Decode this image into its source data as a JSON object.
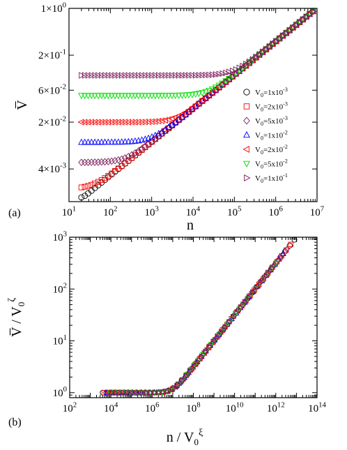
{
  "chart_data": [
    {
      "type": "scatter",
      "panel_label": "(a)",
      "xlabel": "n",
      "ylabel": "V̅",
      "xscale": "log",
      "yscale": "log",
      "xlim": [
        10,
        10000000
      ],
      "ylim": [
        0.0013,
        1.0
      ],
      "x_ticks": [
        {
          "value": 10,
          "base": "10",
          "exp": "1"
        },
        {
          "value": 100,
          "base": "10",
          "exp": "2"
        },
        {
          "value": 1000,
          "base": "10",
          "exp": "3"
        },
        {
          "value": 10000,
          "base": "10",
          "exp": "4"
        },
        {
          "value": 100000,
          "base": "10",
          "exp": "5"
        },
        {
          "value": 1000000,
          "base": "10",
          "exp": "6"
        },
        {
          "value": 10000000,
          "base": "10",
          "exp": "7"
        }
      ],
      "y_ticks": [
        {
          "value": 0.004,
          "label": "4×10",
          "exp": "-3"
        },
        {
          "value": 0.02,
          "label": "2×10",
          "exp": "-2"
        },
        {
          "value": 0.06,
          "label": "6×10",
          "exp": "-2"
        },
        {
          "value": 0.2,
          "label": "2×10",
          "exp": "-1"
        },
        {
          "value": 1.0,
          "label": "1×10",
          "exp": "0"
        }
      ],
      "grid": false,
      "legend_position": "bottom-right",
      "series": [
        {
          "name": "V0=1x10-3",
          "legend_label": "V",
          "legend_sub": "0",
          "legend_val": "=1x10",
          "legend_exp": "-3",
          "marker": "circle",
          "color": "#000000",
          "plateau": 0.001,
          "n_start": 20
        },
        {
          "name": "V0=2x10-3",
          "legend_label": "V",
          "legend_sub": "0",
          "legend_val": "=2x10",
          "legend_exp": "-3",
          "marker": "square",
          "color": "#ff0000",
          "plateau": 0.002,
          "n_start": 20
        },
        {
          "name": "V0=5x10-3",
          "legend_label": "V",
          "legend_sub": "0",
          "legend_val": "=5x10",
          "legend_exp": "-3",
          "marker": "diamond",
          "color": "#7a1a5a",
          "plateau": 0.005,
          "n_start": 20
        },
        {
          "name": "V0=1x10-2",
          "legend_label": "V",
          "legend_sub": "0",
          "legend_val": "=1x10",
          "legend_exp": "-2",
          "marker": "triangle-up",
          "color": "#0000ff",
          "plateau": 0.01,
          "n_start": 20
        },
        {
          "name": "V0=2x10-2",
          "legend_label": "V",
          "legend_sub": "0",
          "legend_val": "=2x10",
          "legend_exp": "-2",
          "marker": "triangle-left",
          "color": "#ff0000",
          "plateau": 0.02,
          "n_start": 20
        },
        {
          "name": "V0=5x10-2",
          "legend_label": "V",
          "legend_sub": "0",
          "legend_val": "=5x10",
          "legend_exp": "-2",
          "marker": "triangle-down",
          "color": "#00dd00",
          "plateau": 0.05,
          "n_start": 20
        },
        {
          "name": "V0=1x10-1",
          "legend_label": "V",
          "legend_sub": "0",
          "legend_val": "=1x10",
          "legend_exp": "-1",
          "marker": "triangle-right",
          "color": "#7a1a5a",
          "plateau": 0.1,
          "n_start": 20
        }
      ],
      "growth_curve": {
        "amplitude": 0.0001,
        "exponent": 0.5
      },
      "n_max": 8000000
    },
    {
      "type": "scatter",
      "panel_label": "(b)",
      "xlabel": "n / V",
      "xlabel_sub": "0",
      "xlabel_exp": "ξ",
      "ylabel": "V̅ / V",
      "ylabel_sub": "0",
      "ylabel_exp": "ζ",
      "xscale": "log",
      "yscale": "log",
      "xlim": [
        100,
        100000000000000
      ],
      "ylim": [
        0.8,
        1000
      ],
      "x_ticks": [
        {
          "value": 100,
          "base": "10",
          "exp": "2"
        },
        {
          "value": 10000,
          "base": "10",
          "exp": "4"
        },
        {
          "value": 1000000,
          "base": "10",
          "exp": "6"
        },
        {
          "value": 100000000,
          "base": "10",
          "exp": "8"
        },
        {
          "value": 10000000000,
          "base": "10",
          "exp": "10"
        },
        {
          "value": 1000000000000,
          "base": "10",
          "exp": "12"
        },
        {
          "value": 100000000000000,
          "base": "10",
          "exp": "14"
        }
      ],
      "y_ticks": [
        {
          "value": 1,
          "base": "10",
          "exp": "0"
        },
        {
          "value": 10,
          "base": "10",
          "exp": "1"
        },
        {
          "value": 100,
          "base": "10",
          "exp": "2"
        },
        {
          "value": 1000,
          "base": "10",
          "exp": "3"
        }
      ],
      "grid": false,
      "collapse": {
        "x_start": 4000,
        "x_knee": 10000000,
        "x_end": 8000000000000,
        "slope": 0.5
      }
    }
  ]
}
